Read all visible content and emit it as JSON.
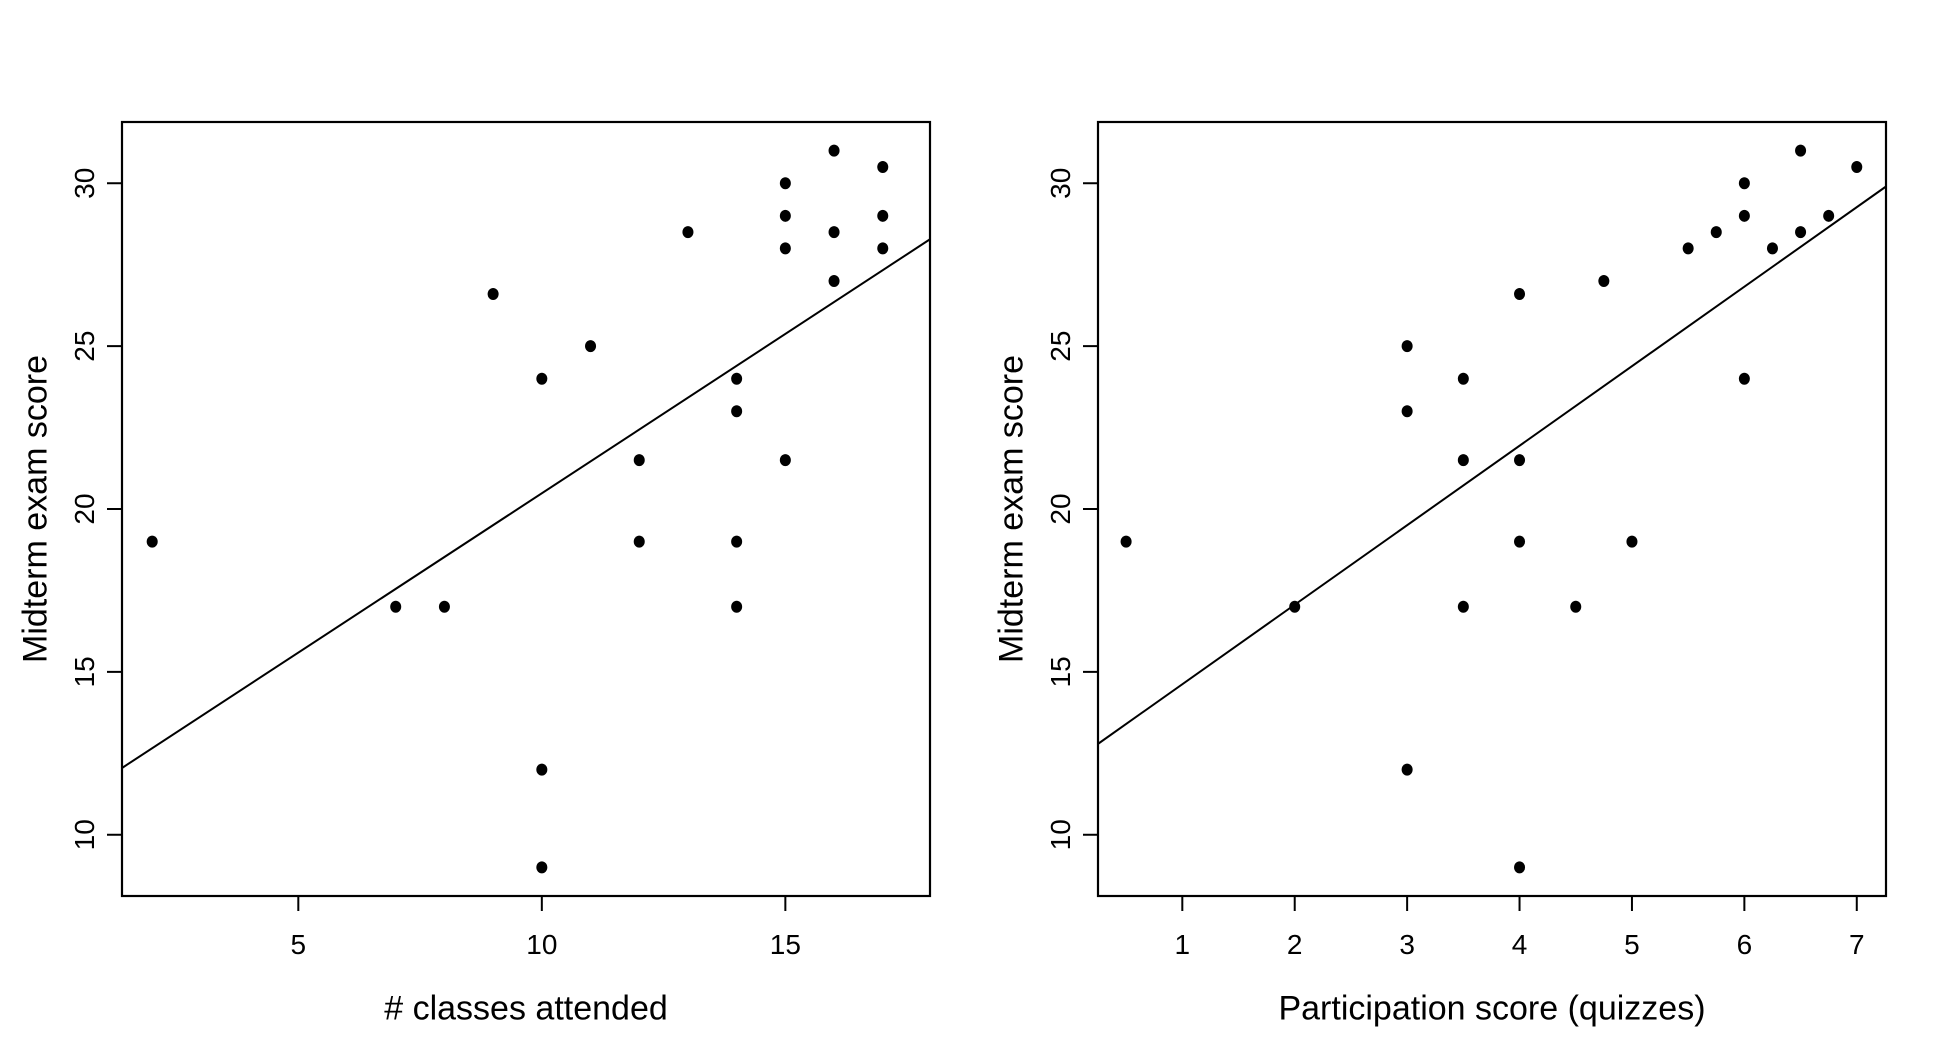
{
  "figure": {
    "background": "#ffffff",
    "ink": "#000000",
    "description": "Two base-R style scatterplots of midterm exam score versus class attendance and versus quiz participation, each with a fitted regression line"
  },
  "chart_data": [
    {
      "type": "scatter",
      "title": "",
      "xlabel": "# classes attended",
      "ylabel": "Midterm exam score",
      "xticks": [
        5,
        10,
        15
      ],
      "yticks": [
        10,
        15,
        20,
        25,
        30
      ],
      "xlim": [
        1.38,
        17.97
      ],
      "ylim": [
        8.12,
        31.88
      ],
      "grid": false,
      "legend": null,
      "marker": {
        "shape": "filled-circle",
        "color": "#000000"
      },
      "points": [
        [
          2,
          19
        ],
        [
          7,
          17
        ],
        [
          8,
          17
        ],
        [
          9,
          26.6
        ],
        [
          10,
          9
        ],
        [
          10,
          12
        ],
        [
          10,
          24
        ],
        [
          11,
          25
        ],
        [
          12,
          19
        ],
        [
          12,
          21.5
        ],
        [
          13,
          28.5
        ],
        [
          14,
          17
        ],
        [
          14,
          19
        ],
        [
          14,
          23
        ],
        [
          14,
          24
        ],
        [
          15,
          21.5
        ],
        [
          15,
          28
        ],
        [
          15,
          29
        ],
        [
          15,
          30
        ],
        [
          16,
          27
        ],
        [
          16,
          28.5
        ],
        [
          16,
          31
        ],
        [
          17,
          28
        ],
        [
          17,
          29
        ],
        [
          17,
          30.5
        ]
      ],
      "fit_line": {
        "slope": 0.98,
        "intercept": 10.7,
        "x1": 1.38,
        "y1": 12.05,
        "x2": 17.97,
        "y2": 28.28
      }
    },
    {
      "type": "scatter",
      "title": "",
      "xlabel": "Participation score (quizzes)",
      "ylabel": "Midterm exam score",
      "xticks": [
        1,
        2,
        3,
        4,
        5,
        6,
        7
      ],
      "yticks": [
        10,
        15,
        20,
        25,
        30
      ],
      "xlim": [
        0.25,
        7.26
      ],
      "ylim": [
        8.12,
        31.88
      ],
      "grid": false,
      "legend": null,
      "marker": {
        "shape": "filled-circle",
        "color": "#000000"
      },
      "points": [
        [
          0.5,
          19
        ],
        [
          2,
          17
        ],
        [
          3,
          12
        ],
        [
          3,
          23
        ],
        [
          3,
          25
        ],
        [
          3.5,
          17
        ],
        [
          3.5,
          21.5
        ],
        [
          3.5,
          24
        ],
        [
          4,
          9
        ],
        [
          4,
          19
        ],
        [
          4,
          21.5
        ],
        [
          4,
          26.6
        ],
        [
          4.5,
          17
        ],
        [
          4.75,
          27
        ],
        [
          5,
          19
        ],
        [
          5.5,
          28
        ],
        [
          5.75,
          28.5
        ],
        [
          6,
          24
        ],
        [
          6,
          29
        ],
        [
          6,
          30
        ],
        [
          6.25,
          28
        ],
        [
          6.5,
          28.5
        ],
        [
          6.5,
          31
        ],
        [
          6.75,
          29
        ],
        [
          7,
          30.5
        ]
      ],
      "fit_line": {
        "slope": 2.44,
        "intercept": 12.18,
        "x1": 0.25,
        "y1": 12.79,
        "x2": 7.26,
        "y2": 29.9
      }
    }
  ]
}
